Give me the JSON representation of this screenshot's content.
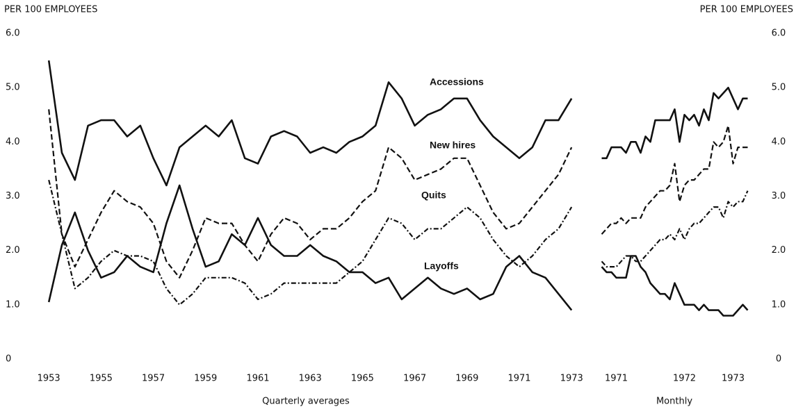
{
  "chart_data": [
    {
      "type": "line",
      "ylabel": "PER 100 EMPLOYEES",
      "xlabel": "Quarterly averages",
      "x": [
        1953,
        1953.5,
        1954,
        1954.5,
        1955,
        1955.5,
        1956,
        1956.5,
        1957,
        1957.5,
        1958,
        1958.5,
        1959,
        1959.5,
        1960,
        1960.5,
        1961,
        1961.5,
        1962,
        1962.5,
        1963,
        1963.5,
        1964,
        1964.5,
        1965,
        1965.5,
        1966,
        1966.5,
        1967,
        1967.5,
        1968,
        1968.5,
        1969,
        1969.5,
        1970,
        1970.5,
        1971,
        1971.5,
        1972,
        1972.5,
        1973
      ],
      "xlim": [
        1952.65,
        1973.1
      ],
      "xticks": [
        1953,
        1955,
        1957,
        1959,
        1961,
        1963,
        1965,
        1967,
        1969,
        1971,
        1973
      ],
      "ylim": [
        0,
        6
      ],
      "yticks": [
        0,
        {
          "value": 1,
          "label": "1.0"
        },
        {
          "value": 2,
          "label": "2.0"
        },
        {
          "value": 3,
          "label": "3.0"
        },
        {
          "value": 4,
          "label": "4.0"
        },
        {
          "value": 5,
          "label": "5.0"
        },
        {
          "value": 6,
          "label": "6.0"
        }
      ],
      "grid": false,
      "series": [
        {
          "name": "Accessions",
          "color": "#111111",
          "dash": "solid",
          "values": [
            5.5,
            3.8,
            3.3,
            4.3,
            4.4,
            4.4,
            4.1,
            4.3,
            3.7,
            3.2,
            3.9,
            4.1,
            4.3,
            4.1,
            4.4,
            3.7,
            3.6,
            4.1,
            4.2,
            4.1,
            3.8,
            3.9,
            3.8,
            4.0,
            4.1,
            4.3,
            5.1,
            4.8,
            4.3,
            4.5,
            4.6,
            4.8,
            4.8,
            4.4,
            4.1,
            3.9,
            3.7,
            3.9,
            4.4,
            4.4,
            4.8
          ]
        },
        {
          "name": "New hires",
          "color": "#111111",
          "dash": "dashed",
          "values": [
            4.6,
            2.3,
            1.7,
            2.2,
            2.7,
            3.1,
            2.9,
            2.8,
            2.5,
            1.8,
            1.5,
            2.0,
            2.6,
            2.5,
            2.5,
            2.1,
            1.8,
            2.3,
            2.6,
            2.5,
            2.2,
            2.4,
            2.4,
            2.6,
            2.9,
            3.1,
            3.9,
            3.7,
            3.3,
            3.4,
            3.5,
            3.7,
            3.7,
            3.2,
            2.7,
            2.4,
            2.5,
            2.8,
            3.1,
            3.4,
            3.9
          ]
        },
        {
          "name": "Quits",
          "color": "#111111",
          "dash": "dashdot",
          "values": [
            3.3,
            2.3,
            1.3,
            1.5,
            1.8,
            2.0,
            1.9,
            1.9,
            1.8,
            1.3,
            1.0,
            1.2,
            1.5,
            1.5,
            1.5,
            1.4,
            1.1,
            1.2,
            1.4,
            1.4,
            1.4,
            1.4,
            1.4,
            1.6,
            1.8,
            2.2,
            2.6,
            2.5,
            2.2,
            2.4,
            2.4,
            2.6,
            2.8,
            2.6,
            2.2,
            1.9,
            1.7,
            1.9,
            2.2,
            2.4,
            2.8
          ]
        },
        {
          "name": "Layoffs",
          "color": "#111111",
          "dash": "solid",
          "values": [
            1.05,
            2.1,
            2.7,
            2.0,
            1.5,
            1.6,
            1.9,
            1.7,
            1.6,
            2.5,
            3.2,
            2.4,
            1.7,
            1.8,
            2.3,
            2.1,
            2.6,
            2.1,
            1.9,
            1.9,
            2.1,
            1.9,
            1.8,
            1.6,
            1.6,
            1.4,
            1.5,
            1.1,
            1.3,
            1.5,
            1.3,
            1.2,
            1.3,
            1.1,
            1.2,
            1.7,
            1.9,
            1.6,
            1.5,
            1.2,
            0.9
          ]
        }
      ]
    },
    {
      "type": "line",
      "ylabel": "PER 100 EMPLOYEES",
      "xlabel": "Monthly",
      "categories": [
        null,
        null,
        null,
        "1971",
        null,
        null,
        null,
        null,
        null,
        null,
        null,
        null,
        null,
        null,
        null,
        null,
        null,
        "1972",
        null,
        null,
        null,
        null,
        null,
        null,
        null,
        null,
        null,
        "1973",
        null,
        null,
        null
      ],
      "ylim": [
        0,
        6
      ],
      "yticks": [
        0,
        {
          "value": 1,
          "label": "1.0"
        },
        {
          "value": 2,
          "label": "2.0"
        },
        {
          "value": 3,
          "label": "3.0"
        },
        {
          "value": 4,
          "label": "4.0"
        },
        {
          "value": 5,
          "label": "5.0"
        },
        {
          "value": 6,
          "label": "6.0"
        }
      ],
      "grid": false,
      "series": [
        {
          "color": "#111111",
          "dash": "solid",
          "values": [
            3.7,
            3.7,
            3.9,
            3.9,
            3.9,
            3.8,
            4.0,
            4.0,
            3.8,
            4.1,
            4.0,
            4.4,
            4.4,
            4.4,
            4.4,
            4.6,
            4.0,
            4.5,
            4.4,
            4.5,
            4.3,
            4.6,
            4.4,
            4.9,
            4.8,
            4.9,
            5.0,
            4.8,
            4.6,
            4.8,
            4.8
          ]
        },
        {
          "color": "#111111",
          "dash": "dashed",
          "values": [
            2.3,
            2.4,
            2.5,
            2.5,
            2.6,
            2.5,
            2.6,
            2.6,
            2.6,
            2.8,
            2.9,
            3.0,
            3.1,
            3.1,
            3.2,
            3.6,
            2.9,
            3.2,
            3.3,
            3.3,
            3.4,
            3.5,
            3.5,
            4.0,
            3.9,
            4.0,
            4.3,
            3.6,
            3.9,
            3.9,
            3.9
          ]
        },
        {
          "color": "#111111",
          "dash": "dashdot",
          "values": [
            1.8,
            1.7,
            1.7,
            1.7,
            1.8,
            1.9,
            1.9,
            1.8,
            1.8,
            1.9,
            2.0,
            2.1,
            2.2,
            2.2,
            2.3,
            2.2,
            2.4,
            2.2,
            2.4,
            2.5,
            2.5,
            2.6,
            2.7,
            2.8,
            2.8,
            2.6,
            2.9,
            2.8,
            2.9,
            2.9,
            3.1
          ]
        },
        {
          "color": "#111111",
          "dash": "solid",
          "values": [
            1.7,
            1.6,
            1.6,
            1.5,
            1.5,
            1.5,
            1.9,
            1.9,
            1.7,
            1.6,
            1.4,
            1.3,
            1.2,
            1.2,
            1.1,
            1.4,
            1.2,
            1.0,
            1.0,
            1.0,
            0.9,
            1.0,
            0.9,
            0.9,
            0.9,
            0.8,
            0.8,
            0.8,
            0.9,
            1.0,
            0.9
          ]
        }
      ]
    }
  ]
}
